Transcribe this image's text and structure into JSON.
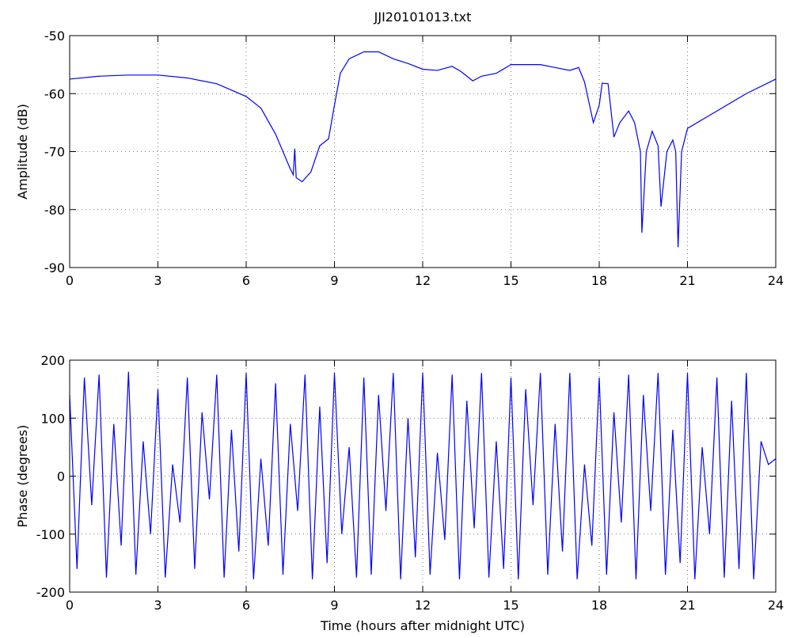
{
  "chart_data": [
    {
      "type": "line",
      "title": "JJI20101013.txt",
      "ylabel": "Amplitude (dB)",
      "x": [
        0,
        1,
        2,
        3,
        4,
        5,
        6,
        6.5,
        7,
        7.5,
        7.6,
        7.65,
        7.7,
        7.9,
        8.2,
        8.5,
        8.8,
        9,
        9.2,
        9.5,
        10,
        10.5,
        11,
        11.5,
        12,
        12.5,
        13,
        13.3,
        13.7,
        14,
        14.5,
        15,
        15.5,
        16,
        16.5,
        17,
        17.3,
        17.5,
        17.8,
        18,
        18.1,
        18.3,
        18.5,
        18.7,
        19,
        19.2,
        19.4,
        19.45,
        19.6,
        19.8,
        20,
        20.1,
        20.3,
        20.5,
        20.6,
        20.68,
        20.8,
        21,
        22,
        23,
        24
      ],
      "values": [
        -57.5,
        -57,
        -56.8,
        -56.8,
        -57.3,
        -58.3,
        -60.5,
        -62.5,
        -67,
        -73,
        -74,
        -69.5,
        -74.5,
        -75.2,
        -73.5,
        -69,
        -67.8,
        -62,
        -56.5,
        -54,
        -52.8,
        -52.8,
        -54,
        -54.8,
        -55.8,
        -56,
        -55.3,
        -56.2,
        -57.8,
        -57,
        -56.5,
        -55,
        -55,
        -55,
        -55.5,
        -56,
        -55.5,
        -58,
        -65,
        -62,
        -58.2,
        -58.3,
        -67.5,
        -65,
        -63,
        -65,
        -70,
        -84,
        -70,
        -66.5,
        -69,
        -79.5,
        -70,
        -68,
        -70,
        -86.5,
        -70,
        -66,
        -63,
        -60,
        -57.5
      ],
      "color": "#0000ff",
      "xlim": [
        0,
        24
      ],
      "xticks": [
        0,
        3,
        6,
        9,
        12,
        15,
        18,
        21,
        24
      ],
      "ylim": [
        -90,
        -50
      ],
      "yticks": [
        -90,
        -80,
        -70,
        -60,
        -50
      ],
      "grid": true
    },
    {
      "type": "line",
      "ylabel": "Phase (degrees)",
      "xlabel": "Time (hours after midnight UTC)",
      "x": [
        0,
        0.25,
        0.5,
        0.75,
        1,
        1.25,
        1.5,
        1.75,
        2,
        2.25,
        2.5,
        2.75,
        3,
        3.25,
        3.5,
        3.75,
        4,
        4.25,
        4.5,
        4.75,
        5,
        5.25,
        5.5,
        5.75,
        6,
        6.25,
        6.5,
        6.75,
        7,
        7.25,
        7.5,
        7.75,
        8,
        8.25,
        8.5,
        8.75,
        9,
        9.25,
        9.5,
        9.75,
        10,
        10.25,
        10.5,
        10.75,
        11,
        11.25,
        11.5,
        11.75,
        12,
        12.25,
        12.5,
        12.75,
        13,
        13.25,
        13.5,
        13.75,
        14,
        14.25,
        14.5,
        14.75,
        15,
        15.25,
        15.5,
        15.75,
        16,
        16.25,
        16.5,
        16.75,
        17,
        17.25,
        17.5,
        17.75,
        18,
        18.25,
        18.5,
        18.75,
        19,
        19.25,
        19.5,
        19.75,
        20,
        20.25,
        20.5,
        20.75,
        21,
        21.25,
        21.5,
        21.75,
        22,
        22.25,
        22.5,
        22.75,
        23,
        23.25,
        23.5,
        23.75,
        24
      ],
      "values": [
        140,
        -160,
        170,
        -50,
        175,
        -175,
        90,
        -120,
        180,
        -170,
        60,
        -100,
        150,
        -175,
        20,
        -80,
        170,
        -160,
        110,
        -40,
        175,
        -175,
        80,
        -130,
        178,
        -178,
        30,
        -120,
        160,
        -170,
        90,
        -60,
        175,
        -178,
        120,
        -150,
        178,
        -100,
        50,
        -175,
        170,
        -170,
        140,
        -60,
        178,
        -178,
        100,
        -140,
        178,
        -170,
        40,
        -110,
        175,
        -178,
        130,
        -90,
        178,
        -175,
        60,
        -160,
        170,
        -178,
        150,
        -50,
        178,
        -170,
        90,
        -130,
        178,
        -178,
        20,
        -120,
        170,
        -170,
        110,
        -80,
        175,
        -178,
        140,
        -60,
        178,
        -170,
        80,
        -150,
        178,
        -178,
        50,
        -100,
        170,
        -175,
        130,
        -160,
        178,
        -178,
        60,
        20,
        30
      ],
      "color": "#0000ff",
      "xlim": [
        0,
        24
      ],
      "xticks": [
        0,
        3,
        6,
        9,
        12,
        15,
        18,
        21,
        24
      ],
      "ylim": [
        -200,
        200
      ],
      "yticks": [
        -200,
        -100,
        0,
        100,
        200
      ],
      "grid": true
    }
  ]
}
